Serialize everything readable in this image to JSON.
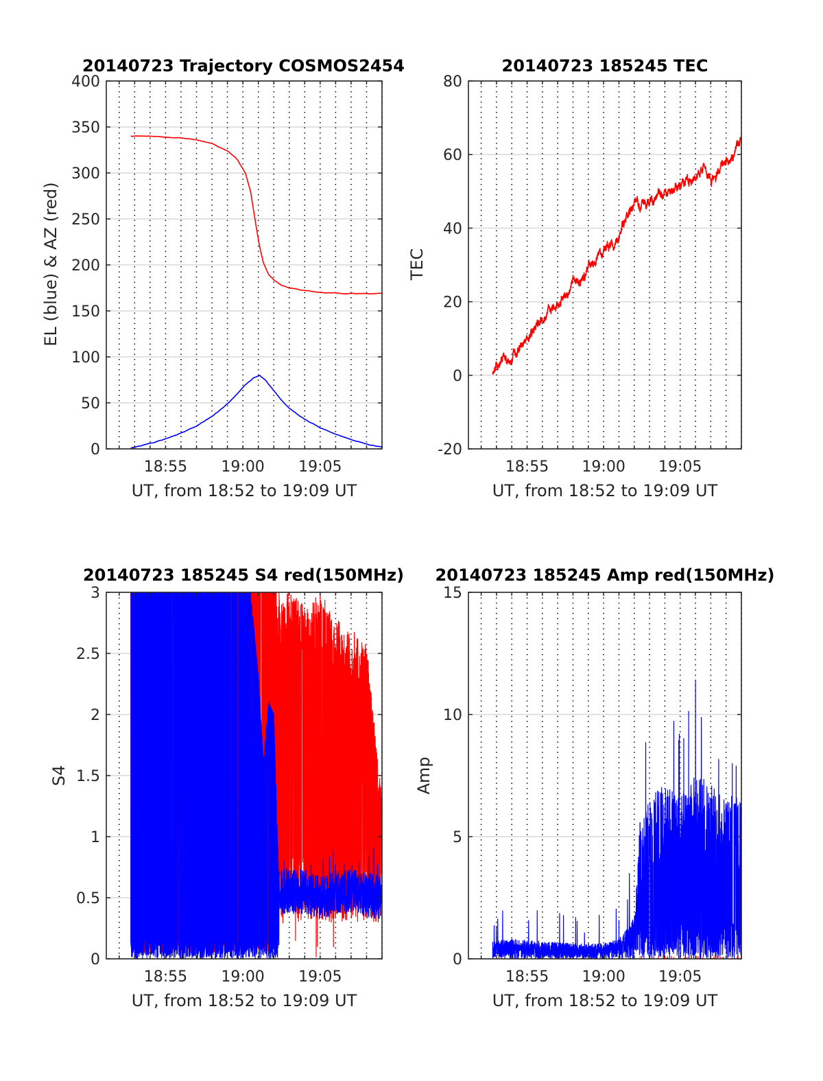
{
  "figure": {
    "background": "#ffffff"
  },
  "colors": {
    "blue": "#0000ff",
    "red": "#ff0000",
    "axis": "#262626",
    "grid": "#d9d9d9"
  },
  "chart_data": [
    {
      "id": "trajectory",
      "type": "line",
      "title": "20140723 Trajectory COSMOS2454",
      "xlabel": "UT, from 18:52 to 19:09 UT",
      "ylabel": "EL (blue) & AZ (red)",
      "xlim": [
        "18:51:10",
        "19:09:00"
      ],
      "ylim": [
        0,
        400
      ],
      "xtick_labels": [
        "18:55",
        "19:00",
        "19:05"
      ],
      "xticks": [
        "18:55",
        "19:00",
        "19:05"
      ],
      "yticks": [
        0,
        50,
        100,
        150,
        200,
        250,
        300,
        350,
        400
      ],
      "vertical_dotted_grid": [
        "18:52",
        "18:53",
        "18:54",
        "18:55",
        "18:56",
        "18:57",
        "18:58",
        "18:59",
        "19:00",
        "19:01",
        "19:02",
        "19:03",
        "19:04",
        "19:05",
        "19:06",
        "19:07",
        "19:08",
        "19:09"
      ],
      "horizontal_grid": true,
      "series": [
        {
          "color": "#ff0000",
          "x": [
            "18:52:45",
            "18:54:00",
            "18:55:00",
            "18:56:00",
            "18:57:00",
            "18:58:00",
            "18:59:00",
            "18:59:40",
            "19:00:10",
            "19:00:30",
            "19:00:50",
            "19:01:05",
            "19:01:20",
            "19:01:40",
            "19:02:00",
            "19:02:30",
            "19:03:00",
            "19:04:00",
            "19:05:00",
            "19:06:00",
            "19:07:00",
            "19:08:00",
            "19:09:00"
          ],
          "y": [
            340,
            340,
            339,
            338,
            336,
            332,
            324,
            314,
            300,
            280,
            245,
            220,
            202,
            190,
            184,
            178,
            175,
            172,
            170,
            169.5,
            169,
            168.6,
            168.5
          ]
        },
        {
          "color": "#0000ff",
          "x": [
            "18:52:45",
            "18:54:00",
            "18:55:00",
            "18:56:00",
            "18:57:00",
            "18:58:00",
            "18:59:00",
            "18:59:40",
            "19:00:10",
            "19:00:40",
            "19:01:06",
            "19:01:30",
            "19:02:00",
            "19:02:30",
            "19:03:00",
            "19:04:00",
            "19:05:00",
            "19:06:00",
            "19:07:00",
            "19:08:00",
            "19:09:00"
          ],
          "y": [
            1,
            6,
            11,
            17,
            25,
            35,
            49,
            60,
            70,
            77,
            80,
            74,
            63,
            53,
            44,
            32,
            23,
            16,
            10,
            5,
            2
          ]
        }
      ]
    },
    {
      "id": "tec",
      "type": "line",
      "title": "20140723 185245 TEC",
      "xlabel": "UT, from 18:52 to 19:09 UT",
      "ylabel": "TEC",
      "xlim": [
        "18:51:10",
        "19:09:00"
      ],
      "ylim": [
        -20,
        80
      ],
      "xtick_labels": [
        "18:55",
        "19:00",
        "19:05"
      ],
      "xticks": [
        "18:55",
        "19:00",
        "19:05"
      ],
      "yticks": [
        -20,
        0,
        20,
        40,
        60,
        80
      ],
      "vertical_dotted_grid": [
        "18:52",
        "18:53",
        "18:54",
        "18:55",
        "18:56",
        "18:57",
        "18:58",
        "18:59",
        "19:00",
        "19:01",
        "19:02",
        "19:03",
        "19:04",
        "19:05",
        "19:06",
        "19:07",
        "19:08",
        "19:09"
      ],
      "horizontal_grid": true,
      "series": [
        {
          "color": "#ff0000",
          "x": [
            "18:52:45",
            "18:53:30",
            "18:54:00",
            "18:55:00",
            "18:55:30",
            "18:56:00",
            "18:57:00",
            "18:57:40",
            "18:58:00",
            "18:58:30",
            "18:59:00",
            "18:59:30",
            "19:00:00",
            "19:00:30",
            "19:01:00",
            "19:01:30",
            "19:02:00",
            "19:02:30",
            "19:03:00",
            "19:03:30",
            "19:04:00",
            "19:04:30",
            "19:05:00",
            "19:05:30",
            "19:06:00",
            "19:06:30",
            "19:07:00",
            "19:07:30",
            "19:08:00",
            "19:08:30",
            "19:09:00"
          ],
          "y": [
            0,
            4,
            4,
            10,
            13,
            15,
            20,
            22,
            26,
            26,
            29,
            32,
            34,
            36,
            38,
            42,
            46,
            47,
            46,
            49,
            50,
            52,
            52,
            53,
            54,
            57,
            53,
            56,
            58,
            60,
            64
          ]
        }
      ]
    },
    {
      "id": "s4",
      "type": "line",
      "title": "20140723 185245 S4 red(150MHz)",
      "xlabel": "UT, from 18:52 to 19:09 UT",
      "ylabel": "S4",
      "xlim": [
        "18:51:10",
        "19:09:00"
      ],
      "ylim": [
        0,
        3
      ],
      "xtick_labels": [
        "18:55",
        "19:00",
        "19:05"
      ],
      "xticks": [
        "18:55",
        "19:00",
        "19:05"
      ],
      "yticks": [
        0,
        0.5,
        1,
        1.5,
        2,
        2.5,
        3
      ],
      "vertical_dotted_grid": [
        "18:52",
        "18:53",
        "18:54",
        "18:55",
        "18:56",
        "18:57",
        "18:58",
        "18:59",
        "19:00",
        "19:01",
        "19:02",
        "19:03",
        "19:04",
        "19:05",
        "19:06",
        "19:07",
        "19:08",
        "19:09"
      ],
      "horizontal_grid": true,
      "series": [
        {
          "color": "#ff0000",
          "x": [
            "18:52:45",
            "19:02:10",
            "19:03:00",
            "19:04:00",
            "19:05:00",
            "19:06:00",
            "19:07:00",
            "19:08:00",
            "19:09:00"
          ],
          "y": [
            3,
            3,
            3,
            2.9,
            3,
            2.8,
            2.7,
            2.6,
            1.3
          ]
        },
        {
          "color": "#0000ff",
          "x": [
            "18:52:45",
            "19:00:30",
            "19:01:00",
            "19:01:20",
            "19:01:40",
            "19:02:00",
            "19:02:20",
            "19:03:00",
            "19:04:00",
            "19:05:00",
            "19:06:00",
            "19:07:00",
            "19:08:00",
            "19:09:00"
          ],
          "y": [
            3,
            3,
            2.3,
            1.6,
            2.1,
            2.0,
            0.55,
            0.55,
            0.55,
            0.5,
            0.55,
            0.55,
            0.52,
            0.5
          ]
        }
      ]
    },
    {
      "id": "amp",
      "type": "line",
      "title": "20140723 185245 Amp red(150MHz)",
      "xlabel": "UT, from 18:52 to 19:09 UT",
      "ylabel": "Amp",
      "xlim": [
        "18:51:10",
        "19:09:00"
      ],
      "ylim": [
        0,
        15
      ],
      "xtick_labels": [
        "18:55",
        "19:00",
        "19:05"
      ],
      "xticks": [
        "18:55",
        "19:00",
        "19:05"
      ],
      "yticks": [
        0,
        5,
        10,
        15
      ],
      "vertical_dotted_grid": [
        "18:52",
        "18:53",
        "18:54",
        "18:55",
        "18:56",
        "18:57",
        "18:58",
        "18:59",
        "19:00",
        "19:01",
        "19:02",
        "19:03",
        "19:04",
        "19:05",
        "19:06",
        "19:07",
        "19:08",
        "19:09"
      ],
      "horizontal_grid": true,
      "series": [
        {
          "color": "#0000ff",
          "x": [
            "18:52:45",
            "18:54:00",
            "18:56:00",
            "18:58:00",
            "19:00:00",
            "19:01:00",
            "19:01:40",
            "19:02:00",
            "19:02:20",
            "19:03:00",
            "19:04:00",
            "19:05:00",
            "19:06:00",
            "19:07:00",
            "19:08:00",
            "19:09:00"
          ],
          "y": [
            0.8,
            0.9,
            0.8,
            0.7,
            0.7,
            0.9,
            1.5,
            2.0,
            6.0,
            7.0,
            7.5,
            7.0,
            8.0,
            7.5,
            7.0,
            7.0
          ]
        }
      ]
    }
  ]
}
